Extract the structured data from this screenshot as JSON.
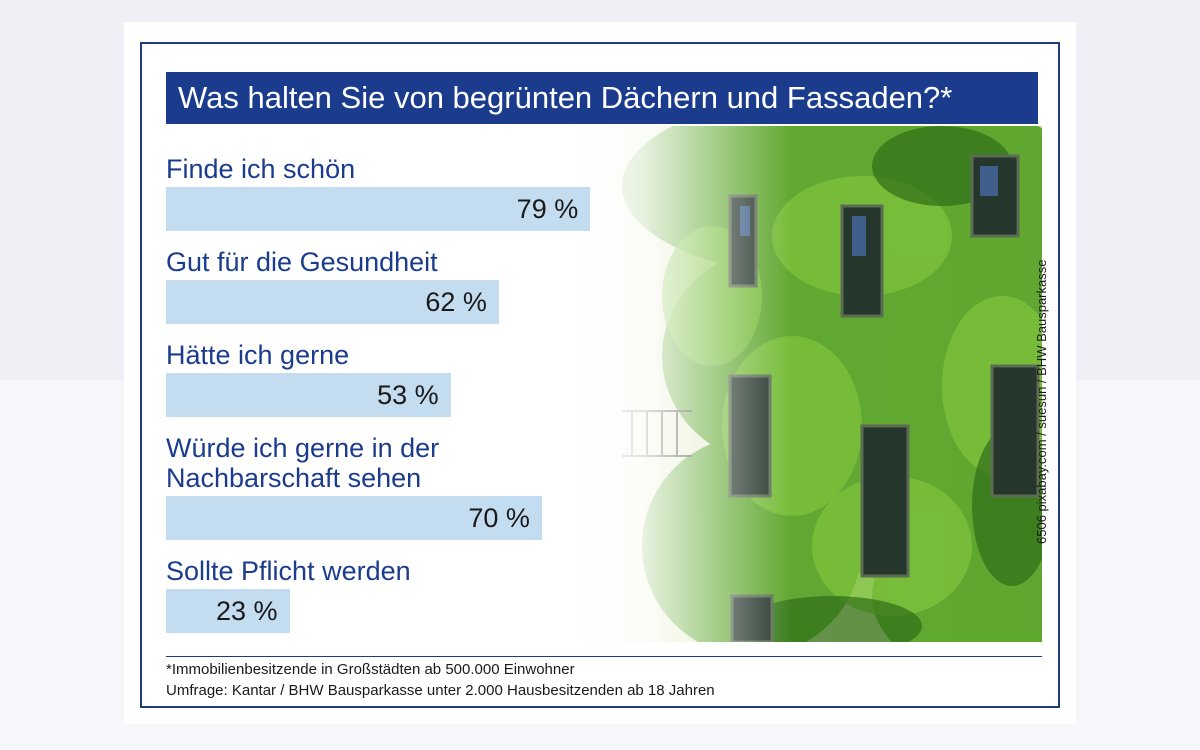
{
  "chart_data": {
    "type": "bar",
    "orientation": "horizontal",
    "title": "Was halten Sie von begrünten Dächern und Fassaden?*",
    "categories": [
      [
        "Finde ich schön"
      ],
      [
        "Gut für die Gesundheit"
      ],
      [
        "Hätte ich gerne"
      ],
      [
        "Würde ich gerne in der",
        "Nachbarschaft sehen"
      ],
      [
        "Sollte Pflicht werden"
      ]
    ],
    "values": [
      79,
      62,
      53,
      70,
      23
    ],
    "value_labels": [
      "79 %",
      "62 %",
      "53 %",
      "70 %",
      "23 %"
    ],
    "unit": "%",
    "xlim": [
      0,
      100
    ],
    "grid": false,
    "bar_color": "#c4dcef"
  },
  "header": {
    "title_bg_color": "#1b3c8d",
    "label_color": "#1b3c8d"
  },
  "credit": "6506 pixabay.com / suesun / BHW Bausparkasse",
  "footnotes": [
    "*Immobilienbesitzende in Großstädten ab 500.000 Einwohner",
    "Umfrage: Kantar / BHW Bausparkasse unter 2.000 Hausbesitzenden ab 18 Jahren"
  ]
}
